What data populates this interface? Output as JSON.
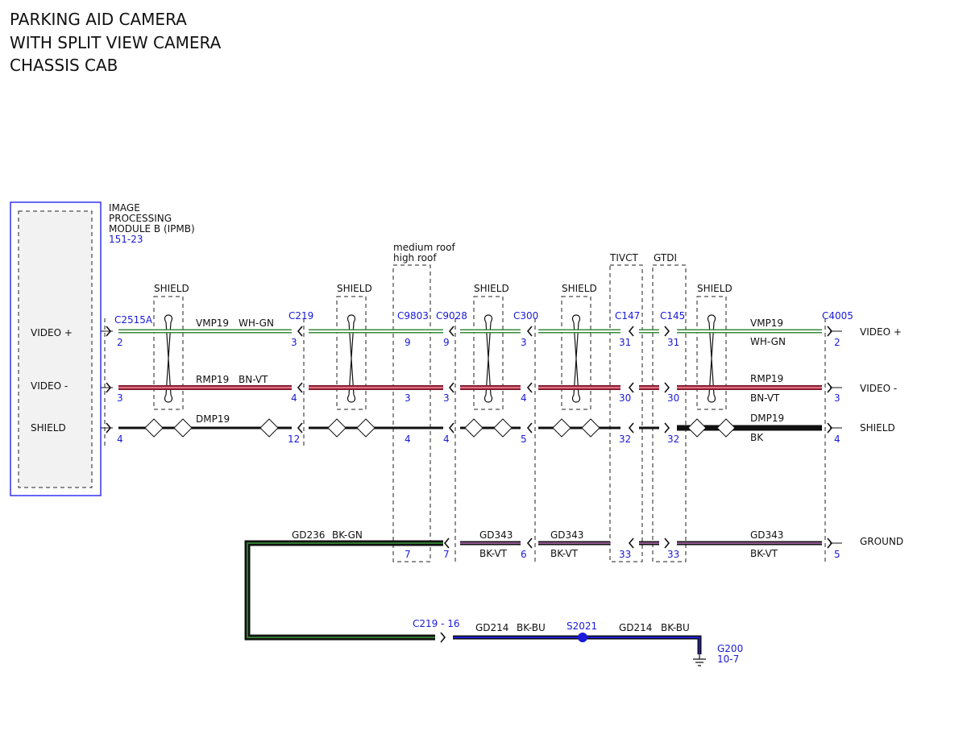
{
  "title": {
    "lines": [
      "PARKING AID CAMERA",
      "WITH SPLIT VIEW CAMERA",
      "CHASSIS CAB"
    ]
  },
  "module": {
    "name_lines": [
      "IMAGE",
      "PROCESSING",
      "MODULE B (IPMB)"
    ],
    "ref": "151-23",
    "pins": [
      "VIDEO +",
      "VIDEO -",
      "SHIELD"
    ]
  },
  "outputs": [
    "VIDEO +",
    "VIDEO -",
    "SHIELD",
    "GROUND"
  ],
  "shields": [
    "SHIELD",
    "SHIELD",
    "SHIELD",
    "SHIELD",
    "SHIELD"
  ],
  "variants": [
    "medium roof",
    "high roof",
    "TIVCT",
    "GTDI"
  ],
  "connectors": [
    {
      "id": "C2515A",
      "pins": [
        "2",
        "3",
        "4"
      ]
    },
    {
      "id": "C219",
      "pins": [
        "3",
        "4",
        "12"
      ]
    },
    {
      "id": "C9803",
      "pins": [
        "9",
        "3",
        "4",
        "7"
      ]
    },
    {
      "id": "C9028",
      "pins": [
        "9",
        "3",
        "4",
        "7"
      ]
    },
    {
      "id": "C300",
      "pins": [
        "3",
        "4",
        "5",
        "6"
      ]
    },
    {
      "id": "C147",
      "pins": [
        "31",
        "30",
        "32",
        "33"
      ]
    },
    {
      "id": "C145",
      "pins": [
        "31",
        "30",
        "32",
        "33"
      ]
    },
    {
      "id": "C4005",
      "pins": [
        "2",
        "3",
        "4",
        "5"
      ]
    }
  ],
  "wires": [
    {
      "circuit": "VMP19",
      "color": "WH-GN"
    },
    {
      "circuit": "RMP19",
      "color": "BN-VT"
    },
    {
      "circuit": "DMP19"
    },
    {
      "circuit": "VMP19",
      "color": "WH-GN"
    },
    {
      "circuit": "RMP19",
      "color": "BN-VT"
    },
    {
      "circuit": "DMP19",
      "color": "BK"
    },
    {
      "circuit": "GD236",
      "color": "BK-GN"
    },
    {
      "circuit": "GD343",
      "color": "BK-VT"
    },
    {
      "circuit": "GD343",
      "color": "BK-VT"
    },
    {
      "circuit": "GD343",
      "color": "BK-VT"
    },
    {
      "circuit": "GD214",
      "color": "BK-BU"
    },
    {
      "circuit": "GD214",
      "color": "BK-BU"
    }
  ],
  "splice": {
    "connector": "C219 - 16",
    "id": "S2021"
  },
  "ground": {
    "id": "G200",
    "ref": "10-7"
  }
}
